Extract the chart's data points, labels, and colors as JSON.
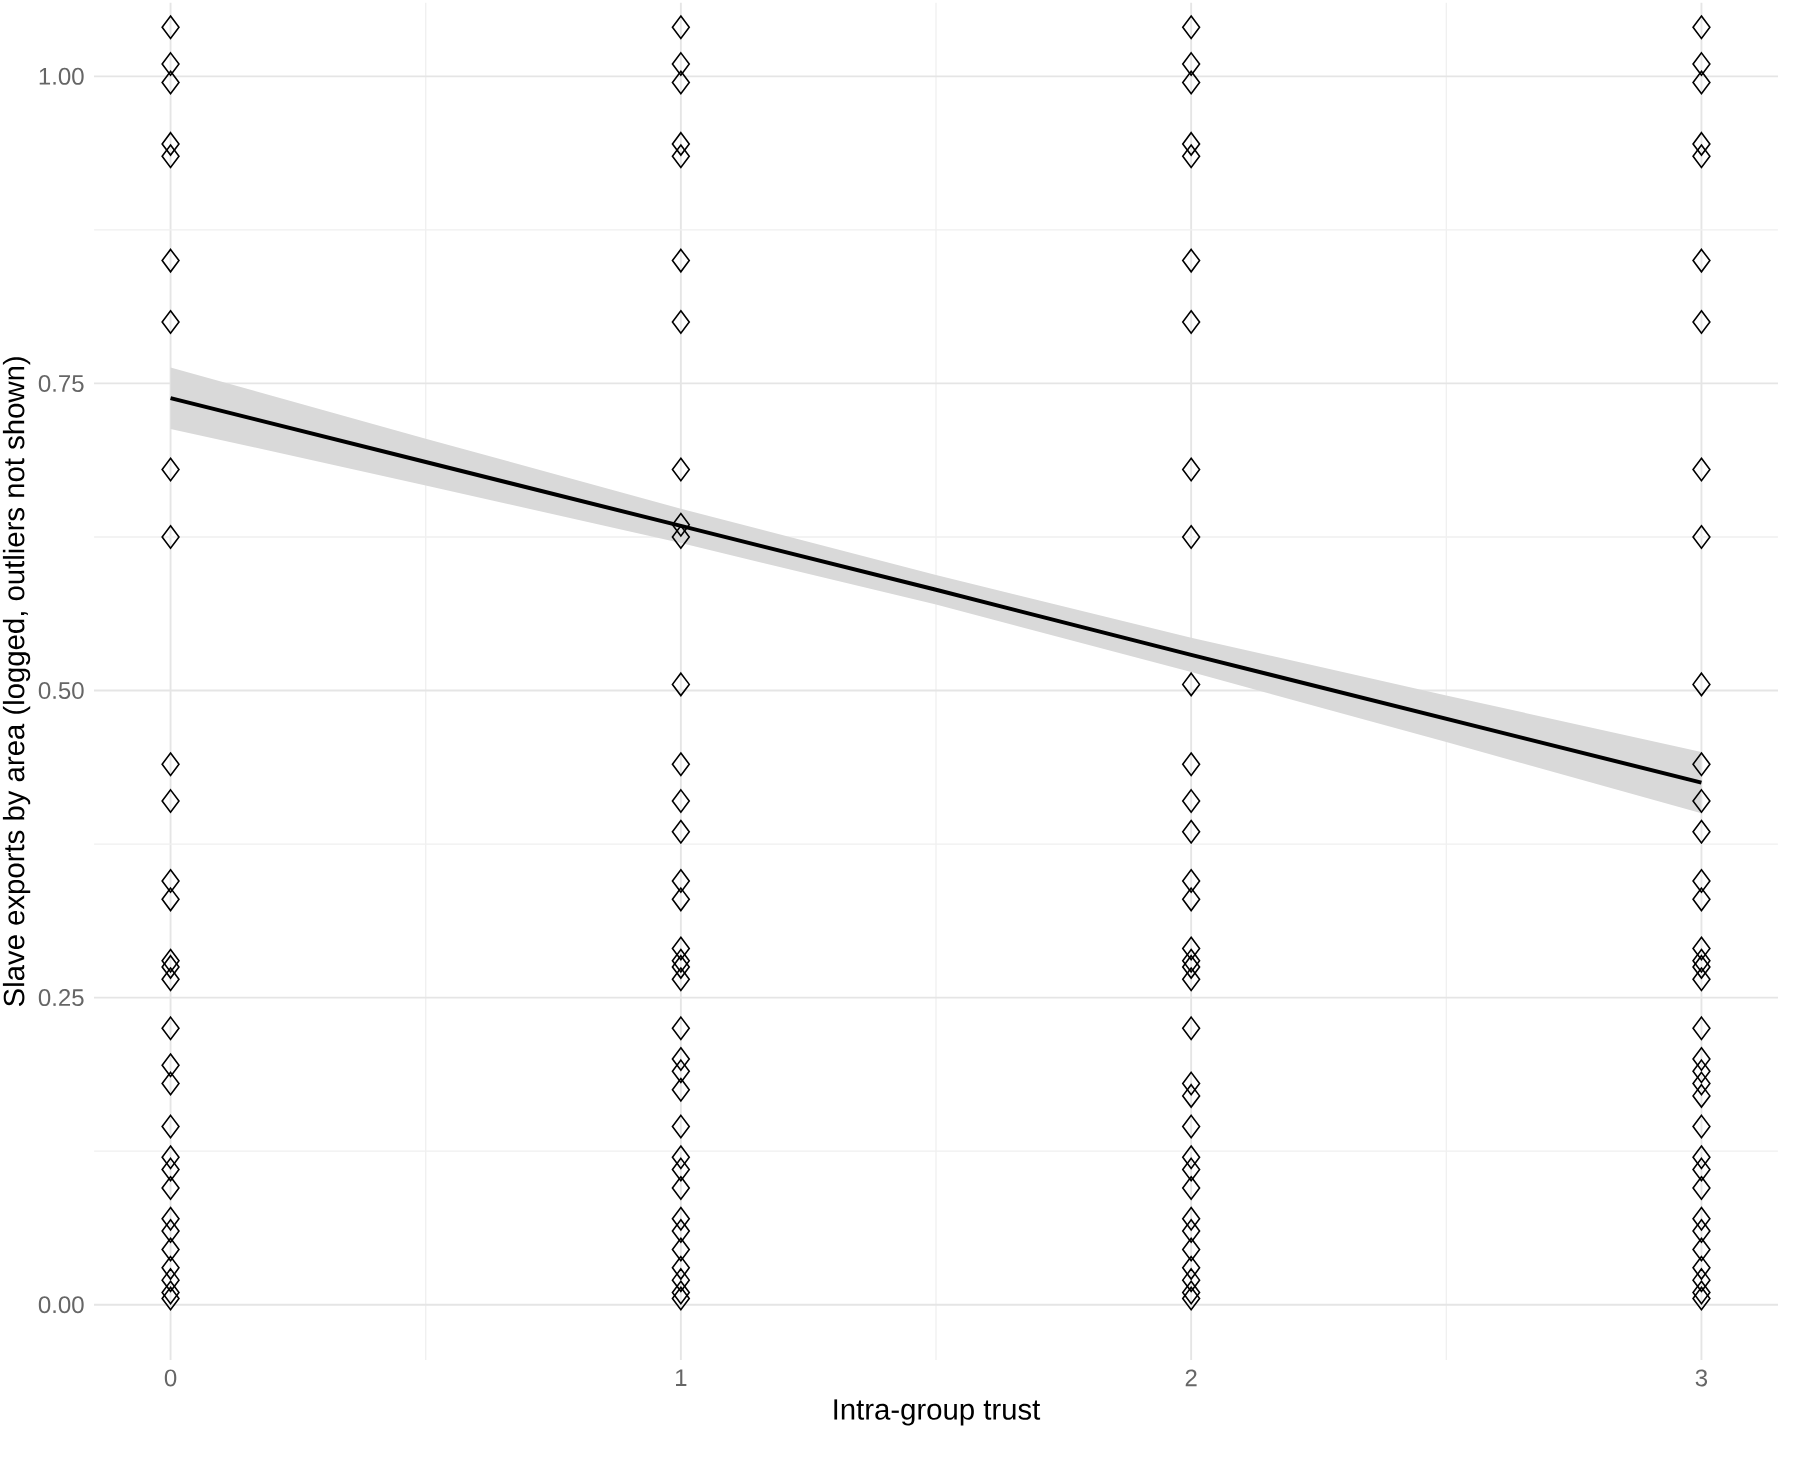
{
  "chart_data": {
    "type": "scatter",
    "xlabel": "Intra-group trust",
    "ylabel": "Slave exports by area (logged, outliers not shown)",
    "xlim": [
      -0.15,
      3.15
    ],
    "ylim": [
      -0.045,
      1.06
    ],
    "xticks": [
      0,
      1,
      2,
      3
    ],
    "yticks": [
      {
        "value": 0,
        "label": "0.00"
      },
      {
        "value": 0.25,
        "label": "0.25"
      },
      {
        "value": 0.5,
        "label": "0.50"
      },
      {
        "value": 0.75,
        "label": "0.75"
      },
      {
        "value": 1.0,
        "label": "1.00"
      }
    ],
    "grid": true,
    "series": [
      {
        "marker": "diamond",
        "color": "#000000",
        "x": [
          0,
          0,
          0,
          0,
          0,
          0,
          0,
          0,
          0,
          0,
          0,
          0,
          0,
          0,
          0,
          0,
          0,
          0,
          0,
          0,
          0,
          0,
          0,
          0,
          0,
          0,
          0,
          0,
          0,
          0,
          1,
          1,
          1,
          1,
          1,
          1,
          1,
          1,
          1,
          1,
          1,
          1,
          1,
          1,
          1,
          1,
          1,
          1,
          1,
          1,
          1,
          1,
          1,
          1,
          1,
          1,
          1,
          1,
          1,
          1,
          1,
          1,
          1,
          1,
          1,
          2,
          2,
          2,
          2,
          2,
          2,
          2,
          2,
          2,
          2,
          2,
          2,
          2,
          2,
          2,
          2,
          2,
          2,
          2,
          2,
          2,
          2,
          2,
          2,
          2,
          2,
          2,
          2,
          2,
          2,
          2,
          2,
          2,
          3,
          3,
          3,
          3,
          3,
          3,
          3,
          3,
          3,
          3,
          3,
          3,
          3,
          3,
          3,
          3,
          3,
          3,
          3,
          3,
          3,
          3,
          3,
          3,
          3,
          3,
          3,
          3,
          3,
          3,
          3,
          3,
          3,
          3,
          3
        ],
        "values": [
          1.04,
          1.01,
          0.995,
          0.945,
          0.935,
          0.85,
          0.8,
          0.68,
          0.625,
          0.44,
          0.41,
          0.345,
          0.33,
          0.28,
          0.275,
          0.265,
          0.225,
          0.195,
          0.18,
          0.145,
          0.12,
          0.11,
          0.095,
          0.07,
          0.06,
          0.045,
          0.03,
          0.02,
          0.01,
          0.005,
          1.04,
          1.01,
          0.995,
          0.945,
          0.935,
          0.85,
          0.8,
          0.68,
          0.635,
          0.625,
          0.505,
          0.44,
          0.41,
          0.385,
          0.345,
          0.33,
          0.29,
          0.28,
          0.275,
          0.265,
          0.225,
          0.2,
          0.19,
          0.175,
          0.145,
          0.12,
          0.11,
          0.095,
          0.07,
          0.06,
          0.045,
          0.03,
          0.02,
          0.01,
          0.005,
          1.04,
          1.01,
          0.995,
          0.945,
          0.935,
          0.85,
          0.8,
          0.68,
          0.625,
          0.505,
          0.44,
          0.41,
          0.385,
          0.345,
          0.33,
          0.29,
          0.28,
          0.275,
          0.265,
          0.225,
          0.18,
          0.17,
          0.145,
          0.12,
          0.11,
          0.095,
          0.07,
          0.06,
          0.045,
          0.03,
          0.02,
          0.01,
          0.005,
          1.04,
          1.01,
          0.995,
          0.945,
          0.935,
          0.85,
          0.8,
          0.68,
          0.625,
          0.505,
          0.44,
          0.41,
          0.385,
          0.345,
          0.33,
          0.29,
          0.28,
          0.275,
          0.265,
          0.225,
          0.2,
          0.19,
          0.18,
          0.17,
          0.145,
          0.12,
          0.11,
          0.095,
          0.07,
          0.06,
          0.045,
          0.03,
          0.02,
          0.01,
          0.005
        ]
      },
      {
        "type": "line",
        "marker": "none",
        "line_style": "solid",
        "color": "#000000",
        "x": [
          0,
          0.5,
          1,
          1.5,
          2,
          2.5,
          3
        ],
        "values": [
          0.738,
          0.686,
          0.634,
          0.582,
          0.529,
          0.477,
          0.425
        ],
        "lower": [
          0.713,
          0.667,
          0.62,
          0.57,
          0.515,
          0.458,
          0.4
        ],
        "upper": [
          0.763,
          0.705,
          0.648,
          0.594,
          0.543,
          0.496,
          0.45
        ]
      }
    ]
  }
}
